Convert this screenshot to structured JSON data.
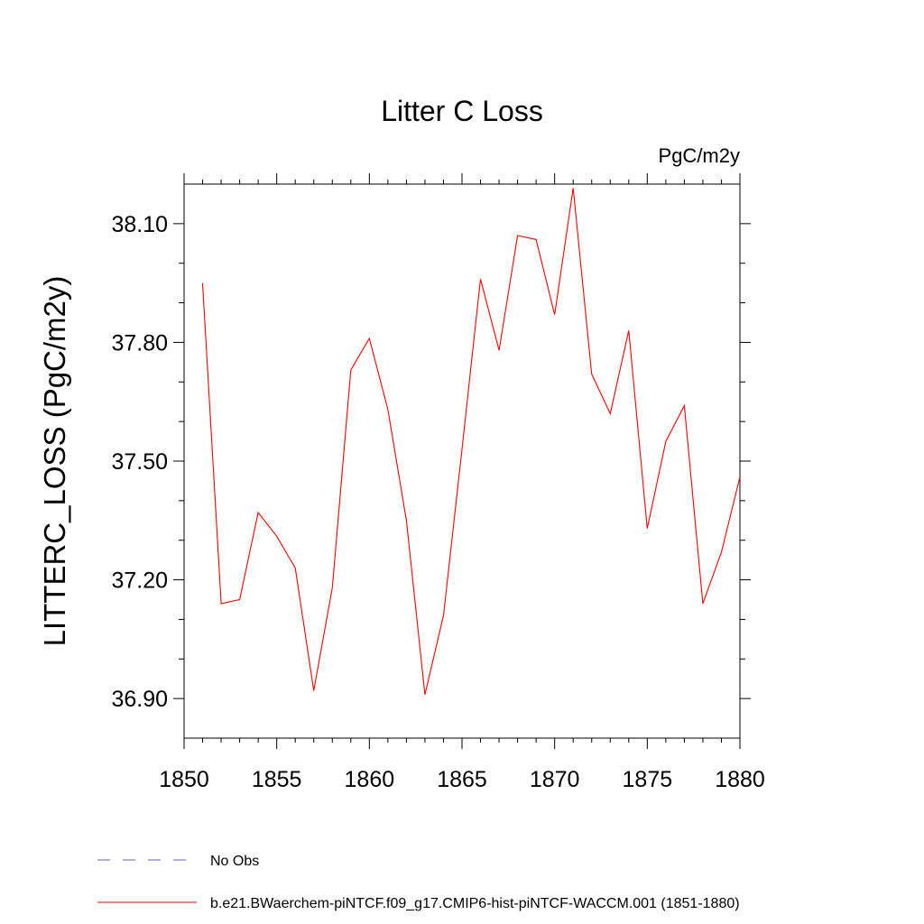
{
  "chart_data": {
    "type": "line",
    "title": "Litter C Loss",
    "units": "PgC/m2y",
    "ylabel": "LITTERC_LOSS  (PgC/m2y)",
    "xlabel": "",
    "xlim": [
      1850,
      1880
    ],
    "ylim": [
      36.8,
      38.2
    ],
    "x_ticks": [
      1850,
      1855,
      1860,
      1865,
      1870,
      1875,
      1880
    ],
    "x_tick_labels": [
      "1850",
      "1855",
      "1860",
      "1865",
      "1870",
      "1875",
      "1880"
    ],
    "y_ticks": [
      36.9,
      37.2,
      37.5,
      37.8,
      38.1
    ],
    "y_tick_labels": [
      "36.90",
      "37.20",
      "37.50",
      "37.80",
      "38.10"
    ],
    "grid": false,
    "legend": {
      "position": "bottom-left"
    },
    "series": [
      {
        "name": "b.e21.BWaerchem-piNTCF.f09_g17.CMIP6-hist-piNTCF-WACCM.001 (1851-1880)",
        "color": "#ff0000",
        "style": "solid",
        "x": [
          1851,
          1852,
          1853,
          1854,
          1855,
          1856,
          1857,
          1858,
          1859,
          1860,
          1861,
          1862,
          1863,
          1864,
          1865,
          1866,
          1867,
          1868,
          1869,
          1870,
          1871,
          1872,
          1873,
          1874,
          1875,
          1876,
          1877,
          1878,
          1879,
          1880
        ],
        "values": [
          37.95,
          37.14,
          37.15,
          37.37,
          37.31,
          37.23,
          36.92,
          37.18,
          37.73,
          37.81,
          37.63,
          37.35,
          36.91,
          37.11,
          37.53,
          37.96,
          37.78,
          38.07,
          38.06,
          37.87,
          38.19,
          37.72,
          37.62,
          37.83,
          37.33,
          37.55,
          37.64,
          37.14,
          37.27,
          37.46
        ]
      }
    ],
    "legend_entries": [
      {
        "label": "No Obs",
        "color": "#6a5acd",
        "style": "dashed"
      },
      {
        "label": "b.e21.BWaerchem-piNTCF.f09_g17.CMIP6-hist-piNTCF-WACCM.001 (1851-1880)",
        "color": "#ff0000",
        "style": "solid"
      }
    ]
  }
}
